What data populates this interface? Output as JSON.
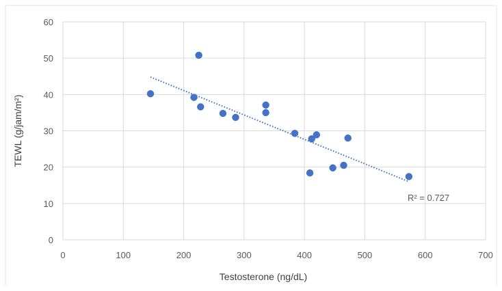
{
  "chart_data": {
    "type": "scatter",
    "title": "",
    "xlabel": "Testosterone (ng/dL)",
    "ylabel": "TEWL (g/jam/m²)",
    "xlim": [
      0,
      700
    ],
    "ylim": [
      0,
      60
    ],
    "x_ticks": [
      "0",
      "100",
      "200",
      "300",
      "400",
      "500",
      "600",
      "700"
    ],
    "y_ticks": [
      "0",
      "10",
      "20",
      "30",
      "40",
      "50",
      "60"
    ],
    "grid": true,
    "legend": "none",
    "series": [
      {
        "color": "#4472c4",
        "points": [
          {
            "x": 145,
            "y": 40.2
          },
          {
            "x": 217,
            "y": 39.2
          },
          {
            "x": 225,
            "y": 50.8
          },
          {
            "x": 228,
            "y": 36.6
          },
          {
            "x": 265,
            "y": 34.8
          },
          {
            "x": 286,
            "y": 33.7
          },
          {
            "x": 336,
            "y": 37.1
          },
          {
            "x": 336,
            "y": 35.0
          },
          {
            "x": 384,
            "y": 29.3
          },
          {
            "x": 409,
            "y": 18.4
          },
          {
            "x": 412,
            "y": 27.8
          },
          {
            "x": 420,
            "y": 28.9
          },
          {
            "x": 447,
            "y": 19.8
          },
          {
            "x": 465,
            "y": 20.5
          },
          {
            "x": 472,
            "y": 28.0
          },
          {
            "x": 573,
            "y": 17.4
          }
        ]
      }
    ],
    "trendline": {
      "type": "linear",
      "style": "dotted",
      "color": "#4472c4",
      "x_start": 145,
      "y_start": 44.8,
      "x_end": 573,
      "y_end": 16.0
    },
    "annotations": {
      "r_squared": "R² = 0.727"
    }
  }
}
